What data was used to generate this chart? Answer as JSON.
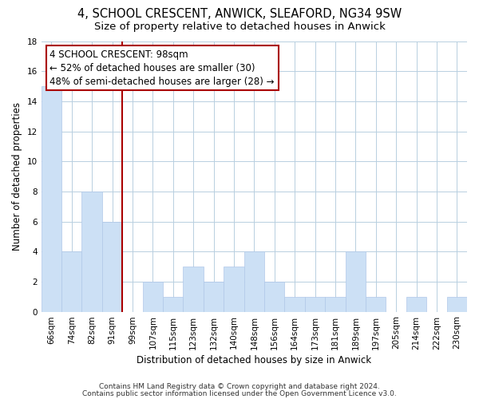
{
  "title": "4, SCHOOL CRESCENT, ANWICK, SLEAFORD, NG34 9SW",
  "subtitle": "Size of property relative to detached houses in Anwick",
  "xlabel": "Distribution of detached houses by size in Anwick",
  "ylabel": "Number of detached properties",
  "bins": [
    "66sqm",
    "74sqm",
    "82sqm",
    "91sqm",
    "99sqm",
    "107sqm",
    "115sqm",
    "123sqm",
    "132sqm",
    "140sqm",
    "148sqm",
    "156sqm",
    "164sqm",
    "173sqm",
    "181sqm",
    "189sqm",
    "197sqm",
    "205sqm",
    "214sqm",
    "222sqm",
    "230sqm"
  ],
  "values": [
    15,
    4,
    8,
    6,
    0,
    2,
    1,
    3,
    2,
    3,
    4,
    2,
    1,
    1,
    1,
    4,
    1,
    0,
    1,
    0,
    1
  ],
  "bar_color": "#cce0f5",
  "bar_edge_color": "#b0c8e8",
  "vline_x": 3.5,
  "vline_color": "#aa0000",
  "annotation_text": "4 SCHOOL CRESCENT: 98sqm\n← 52% of detached houses are smaller (30)\n48% of semi-detached houses are larger (28) →",
  "annotation_box_edge_color": "#aa0000",
  "annotation_box_face_color": "#ffffff",
  "ylim": [
    0,
    18
  ],
  "yticks": [
    0,
    2,
    4,
    6,
    8,
    10,
    12,
    14,
    16,
    18
  ],
  "footer_line1": "Contains HM Land Registry data © Crown copyright and database right 2024.",
  "footer_line2": "Contains public sector information licensed under the Open Government Licence v3.0.",
  "bg_color": "#ffffff",
  "grid_color": "#b8cfe0",
  "title_fontsize": 10.5,
  "subtitle_fontsize": 9.5,
  "axis_label_fontsize": 8.5,
  "tick_fontsize": 7.5,
  "annotation_fontsize": 8.5,
  "footer_fontsize": 6.5
}
